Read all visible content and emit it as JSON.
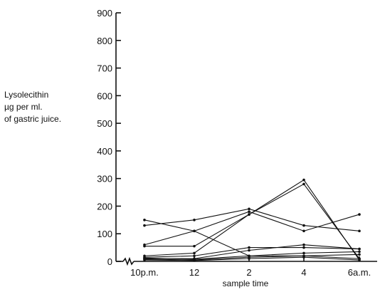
{
  "chart_data": {
    "type": "line",
    "title": "",
    "ylabel": [
      "Lysolecithin",
      "µg       per ml.",
      "of gastric juice."
    ],
    "xlabel": "sample time",
    "categories": [
      "10p.m.",
      "12",
      "2",
      "4",
      "6a.m."
    ],
    "yticks": [
      "0",
      "100",
      "200",
      "300",
      "400",
      "500",
      "600",
      "700",
      "800",
      "900"
    ],
    "ylim": [
      0,
      900
    ],
    "grid": false,
    "axis_break": true,
    "series": [
      {
        "values": [
          150,
          110,
          20,
          20,
          10
        ]
      },
      {
        "values": [
          130,
          150,
          190,
          130,
          110
        ]
      },
      {
        "values": [
          60,
          110,
          180,
          110,
          170
        ]
      },
      {
        "values": [
          55,
          55,
          170,
          280,
          10
        ]
      },
      {
        "values": [
          20,
          30,
          170,
          295,
          5
        ]
      },
      {
        "values": [
          15,
          20,
          50,
          50,
          45
        ]
      },
      {
        "values": [
          10,
          10,
          40,
          60,
          45
        ]
      },
      {
        "values": [
          12,
          8,
          20,
          30,
          35
        ]
      },
      {
        "values": [
          8,
          5,
          15,
          20,
          25
        ]
      },
      {
        "values": [
          5,
          3,
          10,
          15,
          5
        ]
      }
    ]
  }
}
